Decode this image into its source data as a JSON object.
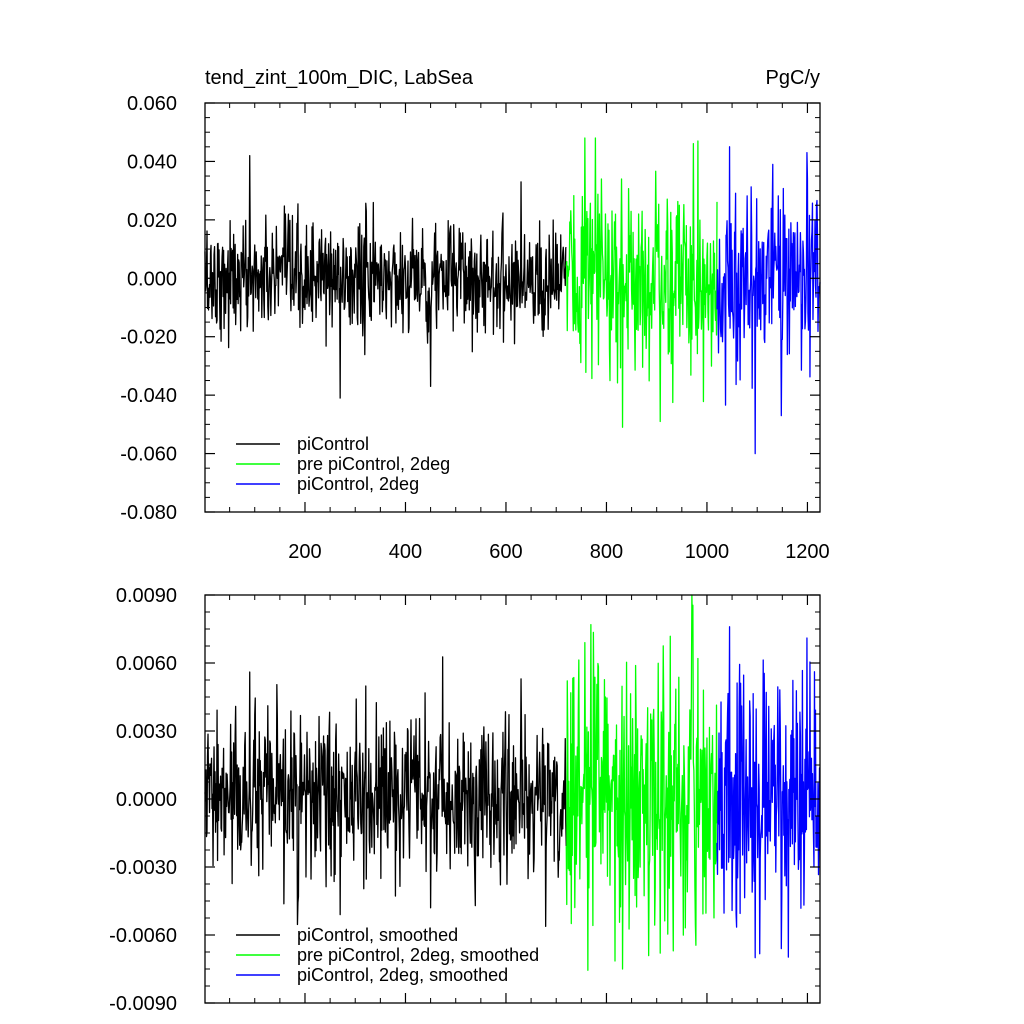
{
  "chart_data": [
    {
      "type": "line",
      "title_left": "tend_zint_100m_DIC, LabSea",
      "title_right": "PgC/y",
      "xlim": [
        1,
        1225
      ],
      "ylim": [
        -0.08,
        0.06
      ],
      "x_major_ticks": [
        200,
        400,
        600,
        800,
        1000,
        1200
      ],
      "x_tick_labels": [
        "200",
        "400",
        "600",
        "800",
        "1000",
        "1200"
      ],
      "y_major_ticks": [
        -0.08,
        -0.06,
        -0.04,
        -0.02,
        0.0,
        0.02,
        0.04,
        0.06
      ],
      "y_tick_labels": [
        "-0.080",
        "-0.060",
        "-0.040",
        "-0.020",
        "0.000",
        "0.020",
        "0.040",
        "0.060"
      ],
      "legend_placement": "bottom-left",
      "series": [
        {
          "name": "piControl",
          "color": "#000000",
          "x_range": [
            1,
            720
          ],
          "sigma": 0.0095,
          "extreme_values": [
            0.042,
            -0.041,
            -0.037,
            0.033
          ]
        },
        {
          "name": "pre piControl, 2deg",
          "color": "#00ff00",
          "x_range": [
            720,
            1020
          ],
          "sigma": 0.0155,
          "extreme_values": [
            0.048,
            -0.051,
            -0.049,
            0.047
          ]
        },
        {
          "name": "piControl, 2deg",
          "color": "#0000ff",
          "x_range": [
            1020,
            1225
          ],
          "sigma": 0.0145,
          "extreme_values": [
            0.045,
            -0.06,
            -0.047,
            0.043
          ]
        }
      ]
    },
    {
      "type": "line",
      "xlim": [
        1,
        1225
      ],
      "ylim": [
        -0.009,
        0.009
      ],
      "y_major_ticks": [
        -0.009,
        -0.006,
        -0.003,
        0.0,
        0.003,
        0.006,
        0.009
      ],
      "y_tick_labels": [
        "-0.0090",
        "-0.0060",
        "-0.0030",
        "0.0000",
        "0.0030",
        "0.0060",
        "0.0090"
      ],
      "legend_placement": "bottom-left",
      "series": [
        {
          "name": "piControl, smoothed",
          "color": "#000000",
          "x_range": [
            1,
            720
          ],
          "sigma": 0.0017,
          "extreme_values": [
            0.0056,
            -0.0051,
            -0.0048,
            0.0053
          ]
        },
        {
          "name": "pre piControl, 2deg, smoothed",
          "color": "#00ff00",
          "x_range": [
            720,
            1020
          ],
          "sigma": 0.0028,
          "extreme_values": [
            0.0069,
            -0.0075,
            -0.0068,
            0.0062
          ]
        },
        {
          "name": "piControl, 2deg, smoothed",
          "color": "#0000ff",
          "x_range": [
            1020,
            1225
          ],
          "sigma": 0.0027,
          "extreme_values": [
            0.0076,
            -0.007,
            -0.0066,
            0.0071
          ]
        }
      ]
    }
  ]
}
